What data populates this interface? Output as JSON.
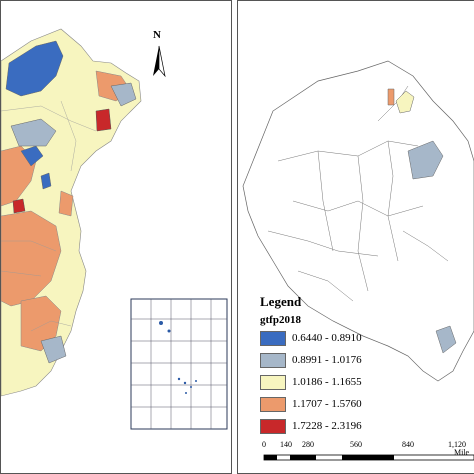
{
  "north_arrow": {
    "label": "N",
    "icon": "north-arrow-icon"
  },
  "legend": {
    "title": "Legend",
    "field": "gtfp2018",
    "classes": [
      {
        "label": "0.6440 - 0.8910",
        "color": "#3a6cc0"
      },
      {
        "label": "0.8991 - 1.0176",
        "color": "#a6b7c9"
      },
      {
        "label": "1.0186 - 1.1655",
        "color": "#f7f5bf"
      },
      {
        "label": "1.1707 - 1.5760",
        "color": "#ec9a6c"
      },
      {
        "label": "1.7228 - 2.3196",
        "color": "#c8282a"
      }
    ]
  },
  "scale_bar": {
    "ticks": [
      "0",
      "140",
      "280",
      "560",
      "840",
      "1,120"
    ],
    "unit": "Mile"
  }
}
